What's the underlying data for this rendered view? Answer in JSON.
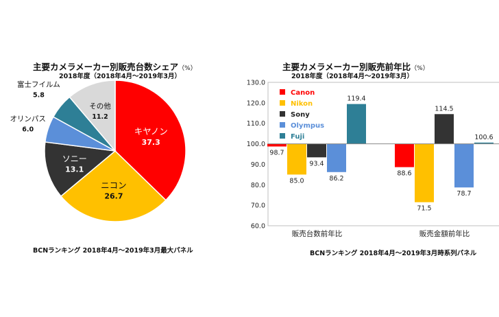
{
  "chart_data": [
    {
      "type": "pie",
      "title": "主要カメラメーカー別販売台数シェア",
      "unit": "（%）",
      "subtitle": "2018年度（2018年4月～2019年3月）",
      "slices": [
        {
          "label": "キヤノン",
          "value": 37.3,
          "value_text": "37.3",
          "color": "#ff0000"
        },
        {
          "label": "ニコン",
          "value": 26.7,
          "value_text": "26.7",
          "color": "#ffc000"
        },
        {
          "label": "ソニー",
          "value": 13.1,
          "value_text": "13.1",
          "color": "#333333"
        },
        {
          "label": "オリンパス",
          "value": 6.0,
          "value_text": "6.0",
          "color": "#5b8fd9"
        },
        {
          "label": "富士フイルム",
          "value": 5.8,
          "value_text": "5.8",
          "color": "#2e7f96"
        },
        {
          "label": "その他",
          "value": 11.2,
          "value_text": "11.2",
          "color": "#d9d9d9"
        }
      ],
      "footer": "BCNランキング 2018年4月～2019年3月最大パネル"
    },
    {
      "type": "bar",
      "title": "主要カメラメーカー別販売前年比",
      "unit": "（%）",
      "subtitle": "2018年度（2018年4月～2019年3月）",
      "categories": [
        "販売台数前年比",
        "販売金額前年比"
      ],
      "series": [
        {
          "name": "Canon",
          "color": "#ff0000",
          "values": [
            98.7,
            88.6
          ]
        },
        {
          "name": "Nikon",
          "color": "#ffc000",
          "values": [
            85.0,
            71.5
          ]
        },
        {
          "name": "Sony",
          "color": "#333333",
          "values": [
            93.4,
            114.5
          ]
        },
        {
          "name": "Olympus",
          "color": "#5b8fd9",
          "values": [
            86.2,
            78.7
          ]
        },
        {
          "name": "Fuji",
          "color": "#2e7f96",
          "values": [
            119.4,
            100.6
          ]
        }
      ],
      "value_labels": [
        [
          "98.7",
          "85.0",
          "93.4",
          "86.2",
          "119.4"
        ],
        [
          "88.6",
          "71.5",
          "114.5",
          "78.7",
          "100.6"
        ]
      ],
      "baseline": 100,
      "ylim": [
        60,
        130
      ],
      "yticks": [
        "60.0",
        "70.0",
        "80.0",
        "90.0",
        "100.0",
        "110.0",
        "120.0",
        "130.0"
      ],
      "legend_position": "top-left",
      "footer": "BCNランキング 2018年4月～2019年3月時系列パネル"
    }
  ]
}
